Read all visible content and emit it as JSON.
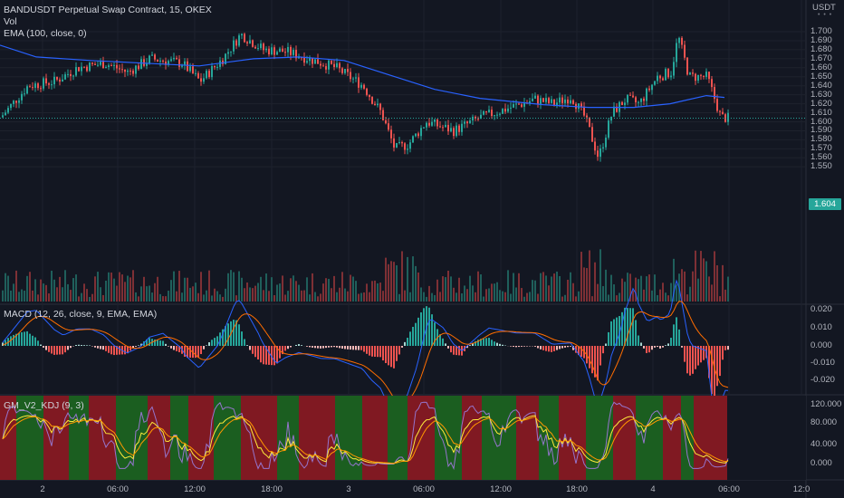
{
  "legends": {
    "symbol": "BANDUSDT Perpetual Swap Contract, 15, OKEX",
    "vol": "Vol",
    "ema": "EMA (100, close, 0)",
    "macd": "MACD (12, 26, close, 9, EMA, EMA)",
    "kdj": "GM_V2_KDJ (9, 3)"
  },
  "price_axis": {
    "currency": "USDT",
    "labels": [
      "1.700",
      "1.690",
      "1.680",
      "1.670",
      "1.660",
      "1.650",
      "1.640",
      "1.630",
      "1.620",
      "1.610",
      "1.600",
      "1.590",
      "1.580",
      "1.570",
      "1.560",
      "1.550"
    ],
    "last_price": "1.604"
  },
  "macd_axis": {
    "labels": [
      "0.020",
      "0.010",
      "0.000",
      "-0.010",
      "-0.020"
    ]
  },
  "kdj_axis": {
    "labels": [
      "120.000",
      "80.000",
      "40.000",
      "0.000"
    ]
  },
  "time_axis": {
    "labels": [
      "2",
      "06:00",
      "12:00",
      "18:00",
      "3",
      "06:00",
      "12:00",
      "18:00",
      "4",
      "06:00",
      "12:0"
    ]
  },
  "colors": {
    "background": "#131722",
    "up": "#26a69a",
    "down": "#ef5350",
    "ema": "#2962ff",
    "macd_line": "#2962ff",
    "signal_line": "#ff6d00",
    "kdj_green_bg": "#1b5e20",
    "kdj_red_bg": "#801922"
  },
  "chart_data": {
    "type": "candlestick",
    "symbol": "BANDUSDT",
    "interval": "15",
    "price_range": [
      1.548,
      1.705
    ],
    "last_price": 1.604,
    "key_points": [
      {
        "x": "2",
        "price": 1.605
      },
      {
        "x": "06:00",
        "price": 1.66
      },
      {
        "x": "12:00",
        "price": 1.66
      },
      {
        "x": "15:30",
        "price": 1.7
      },
      {
        "x": "18:00",
        "price": 1.675
      },
      {
        "x": "3",
        "price": 1.6
      },
      {
        "x": "06:00",
        "price": 1.6
      },
      {
        "x": "12:00",
        "price": 1.625
      },
      {
        "x": "18:00",
        "price": 1.615
      },
      {
        "x": "4",
        "price": 1.63
      },
      {
        "x": "04:30",
        "price": 1.695
      },
      {
        "x": "06:00",
        "price": 1.604
      }
    ]
  }
}
